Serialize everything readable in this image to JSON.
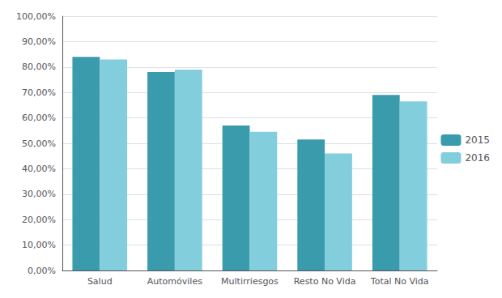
{
  "chart_data": {
    "type": "bar",
    "categories": [
      "Salud",
      "Automóviles",
      "Multirriesgos",
      "Resto No Vida",
      "Total No Vida"
    ],
    "series": [
      {
        "name": "2015",
        "color": "#3A9BAD",
        "values": [
          0.84,
          0.78,
          0.57,
          0.515,
          0.69
        ]
      },
      {
        "name": "2016",
        "color": "#82CEDD",
        "values": [
          0.83,
          0.79,
          0.545,
          0.46,
          0.665
        ]
      }
    ],
    "ylim": [
      0,
      1.0
    ],
    "yticks": [
      {
        "value": 0.0,
        "label": "0,00%"
      },
      {
        "value": 0.1,
        "label": "10,00%"
      },
      {
        "value": 0.2,
        "label": "20,00%"
      },
      {
        "value": 0.3,
        "label": "30,00%"
      },
      {
        "value": 0.4,
        "label": "40,00%"
      },
      {
        "value": 0.5,
        "label": "50,00%"
      },
      {
        "value": 0.6,
        "label": "60,00%"
      },
      {
        "value": 0.7,
        "label": "70,00%"
      },
      {
        "value": 0.8,
        "label": "80,00%"
      },
      {
        "value": 0.9,
        "label": "90,00%"
      },
      {
        "value": 1.0,
        "label": "100,00%"
      }
    ],
    "grid": true,
    "legend": "right"
  }
}
